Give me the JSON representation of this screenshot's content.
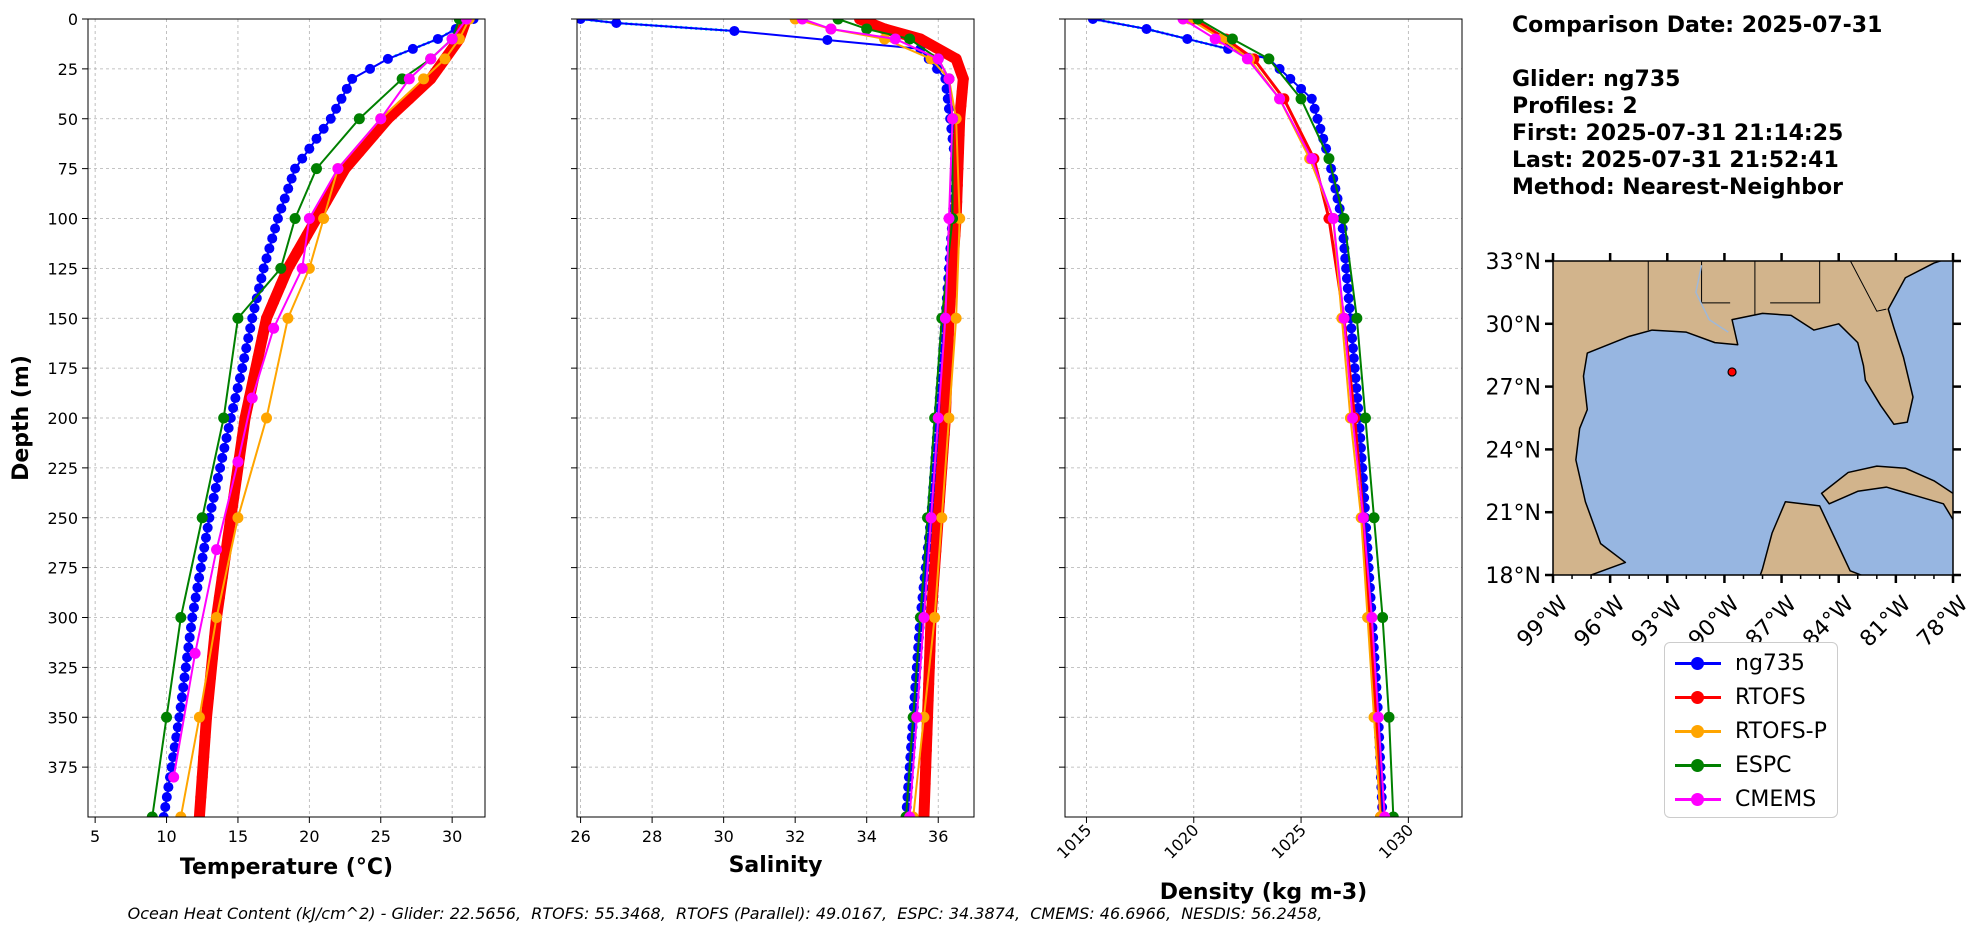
{
  "info": {
    "comparison_date": "Comparison Date: 2025-07-31",
    "glider": "Glider: ng735",
    "profiles": "Profiles: 2",
    "first": "First: 2025-07-31 21:14:25",
    "last": "Last: 2025-07-31 21:52:41",
    "method": "Method: Nearest-Neighbor"
  },
  "footer": "Ocean Heat Content (kJ/cm^2) - Glider: 22.5656,  RTOFS: 55.3468,  RTOFS (Parallel): 49.0167,  ESPC: 34.3874,  CMEMS: 46.6966,  NESDIS: 56.2458,",
  "colors": {
    "ng735": "#0000ff",
    "RTOFS": "#ff0000",
    "RTOFS-P": "#ffa500",
    "ESPC": "#008000",
    "CMEMS": "#ff00ff",
    "raw": "#00e5ee",
    "land": "#d2b48c",
    "ocean": "#97b6e1"
  },
  "legend": [
    {
      "name": "ng735",
      "color": "#0000ff"
    },
    {
      "name": "RTOFS",
      "color": "#ff0000"
    },
    {
      "name": "RTOFS-P",
      "color": "#ffa500"
    },
    {
      "name": "ESPC",
      "color": "#008000"
    },
    {
      "name": "CMEMS",
      "color": "#ff00ff"
    }
  ],
  "chart_data": [
    {
      "type": "line",
      "xlabel": "Temperature (°C)",
      "ylabel": "Depth (m)",
      "xlim": [
        4.5,
        32.3
      ],
      "ylim": [
        400,
        0
      ],
      "xticks": [
        5,
        10,
        15,
        20,
        25,
        30
      ],
      "yticks": [
        0,
        25,
        50,
        75,
        100,
        125,
        150,
        175,
        200,
        225,
        250,
        275,
        300,
        325,
        350,
        375
      ],
      "grid": true,
      "series": [
        {
          "name": "ng735",
          "depth": [
            0,
            10,
            20,
            30,
            50,
            75,
            100,
            125,
            150,
            175,
            200,
            250,
            300,
            350,
            400
          ],
          "values": [
            31.5,
            29.0,
            25.5,
            23.0,
            21.5,
            19.0,
            17.8,
            16.8,
            16.0,
            15.3,
            14.5,
            13.0,
            11.8,
            10.9,
            9.8
          ]
        },
        {
          "name": "RTOFS",
          "depth": [
            0,
            10,
            20,
            30,
            50,
            75,
            100,
            125,
            150,
            200,
            250,
            300,
            350,
            400
          ],
          "values": [
            31.0,
            30.5,
            29.5,
            28.5,
            25.5,
            22.5,
            20.5,
            18.5,
            17.0,
            15.5,
            14.5,
            13.5,
            12.8,
            12.3
          ]
        },
        {
          "name": "RTOFS-P",
          "depth": [
            0,
            10,
            20,
            30,
            50,
            75,
            100,
            125,
            150,
            200,
            250,
            300,
            350,
            400
          ],
          "values": [
            31.2,
            30.5,
            29.5,
            28.0,
            25.0,
            22.0,
            21.0,
            20.0,
            18.5,
            17.0,
            15.0,
            13.5,
            12.3,
            11.0
          ]
        },
        {
          "name": "ESPC",
          "depth": [
            0,
            10,
            20,
            30,
            50,
            75,
            100,
            125,
            150,
            200,
            250,
            300,
            350,
            400
          ],
          "values": [
            30.5,
            30.0,
            28.5,
            26.5,
            23.5,
            20.5,
            19.0,
            18.0,
            15.0,
            14.0,
            12.5,
            11.0,
            10.0,
            9.0
          ]
        },
        {
          "name": "CMEMS",
          "depth": [
            0,
            10,
            20,
            30,
            50,
            75,
            100,
            125,
            155,
            190,
            222,
            266,
            318,
            380
          ],
          "values": [
            31.0,
            30.0,
            28.5,
            27.0,
            25.0,
            22.0,
            20.0,
            19.5,
            17.5,
            16.0,
            15.0,
            13.5,
            12.0,
            10.5
          ]
        }
      ]
    },
    {
      "type": "line",
      "xlabel": "Salinity",
      "ylabel": "",
      "xlim": [
        25.9,
        37.0
      ],
      "ylim": [
        400,
        0
      ],
      "xticks": [
        26,
        28,
        30,
        32,
        34,
        36
      ],
      "grid": true,
      "series": [
        {
          "name": "ng735",
          "depth": [
            0,
            2,
            6,
            15,
            30,
            75,
            100,
            150,
            200,
            250,
            300,
            350,
            400
          ],
          "values": [
            26.0,
            27.0,
            30.3,
            35.5,
            36.2,
            36.5,
            36.4,
            36.2,
            36.0,
            35.8,
            35.5,
            35.3,
            35.1
          ]
        },
        {
          "name": "RTOFS",
          "depth": [
            0,
            5,
            10,
            20,
            30,
            50,
            100,
            150,
            200,
            250,
            300,
            350,
            400
          ],
          "values": [
            33.8,
            34.5,
            35.5,
            36.5,
            36.7,
            36.6,
            36.5,
            36.3,
            36.2,
            36.0,
            35.8,
            35.7,
            35.6
          ]
        },
        {
          "name": "RTOFS-P",
          "depth": [
            0,
            5,
            10,
            20,
            30,
            50,
            100,
            150,
            200,
            250,
            300,
            350,
            400
          ],
          "values": [
            32.0,
            33.0,
            34.5,
            35.8,
            36.3,
            36.5,
            36.6,
            36.5,
            36.3,
            36.1,
            35.9,
            35.6,
            35.3
          ]
        },
        {
          "name": "ESPC",
          "depth": [
            0,
            5,
            10,
            20,
            30,
            50,
            100,
            150,
            200,
            250,
            300,
            350,
            400
          ],
          "values": [
            33.2,
            34.0,
            35.2,
            36.0,
            36.3,
            36.4,
            36.4,
            36.1,
            35.9,
            35.7,
            35.5,
            35.3,
            35.1
          ]
        },
        {
          "name": "CMEMS",
          "depth": [
            0,
            5,
            10,
            20,
            30,
            50,
            100,
            150,
            200,
            250,
            300,
            350,
            400
          ],
          "values": [
            32.2,
            33.0,
            34.8,
            36.0,
            36.3,
            36.4,
            36.3,
            36.2,
            36.0,
            35.8,
            35.6,
            35.4,
            35.2
          ]
        }
      ]
    },
    {
      "type": "line",
      "xlabel": "Density (kg m-3)",
      "ylabel": "",
      "xlim": [
        1014.0,
        1032.5
      ],
      "ylim": [
        400,
        0
      ],
      "xticks": [
        1015,
        1020,
        1025,
        1030
      ],
      "grid": true,
      "series": [
        {
          "name": "ng735",
          "depth": [
            0,
            5,
            20,
            40,
            70,
            100,
            150,
            200,
            250,
            300,
            350,
            400
          ],
          "values": [
            1015.3,
            1017.8,
            1023.5,
            1025.5,
            1026.3,
            1026.9,
            1027.3,
            1027.7,
            1028.0,
            1028.3,
            1028.6,
            1028.8
          ]
        },
        {
          "name": "RTOFS",
          "depth": [
            0,
            10,
            20,
            40,
            70,
            100,
            150,
            200,
            250,
            300,
            350,
            400
          ],
          "values": [
            1020.0,
            1021.5,
            1022.8,
            1024.2,
            1025.6,
            1026.3,
            1027.0,
            1027.5,
            1027.9,
            1028.2,
            1028.5,
            1028.7
          ]
        },
        {
          "name": "RTOFS-P",
          "depth": [
            0,
            10,
            20,
            40,
            70,
            100,
            150,
            200,
            250,
            300,
            350,
            400
          ],
          "values": [
            1019.8,
            1021.3,
            1022.6,
            1024.0,
            1025.4,
            1026.5,
            1026.9,
            1027.3,
            1027.8,
            1028.1,
            1028.4,
            1028.7
          ]
        },
        {
          "name": "ESPC",
          "depth": [
            0,
            10,
            20,
            40,
            70,
            100,
            150,
            200,
            250,
            300,
            350,
            400
          ],
          "values": [
            1020.2,
            1021.8,
            1023.5,
            1025.0,
            1026.3,
            1027.0,
            1027.6,
            1028.0,
            1028.4,
            1028.8,
            1029.1,
            1029.3
          ]
        },
        {
          "name": "CMEMS",
          "depth": [
            0,
            10,
            20,
            40,
            70,
            100,
            150,
            200,
            250,
            300,
            350,
            400
          ],
          "values": [
            1019.5,
            1021.0,
            1022.5,
            1024.0,
            1025.5,
            1026.5,
            1027.0,
            1027.4,
            1027.9,
            1028.3,
            1028.6,
            1028.9
          ]
        }
      ]
    },
    {
      "type": "map",
      "xticks": [
        "99°W",
        "96°W",
        "93°W",
        "90°W",
        "87°W",
        "84°W",
        "81°W",
        "78°W"
      ],
      "yticks": [
        "18°N",
        "21°N",
        "24°N",
        "27°N",
        "30°N",
        "33°N"
      ],
      "lon_range": [
        -99,
        -78
      ],
      "lat_range": [
        18,
        33
      ],
      "glider_location": {
        "lon": -89.6,
        "lat": 27.7
      }
    }
  ]
}
